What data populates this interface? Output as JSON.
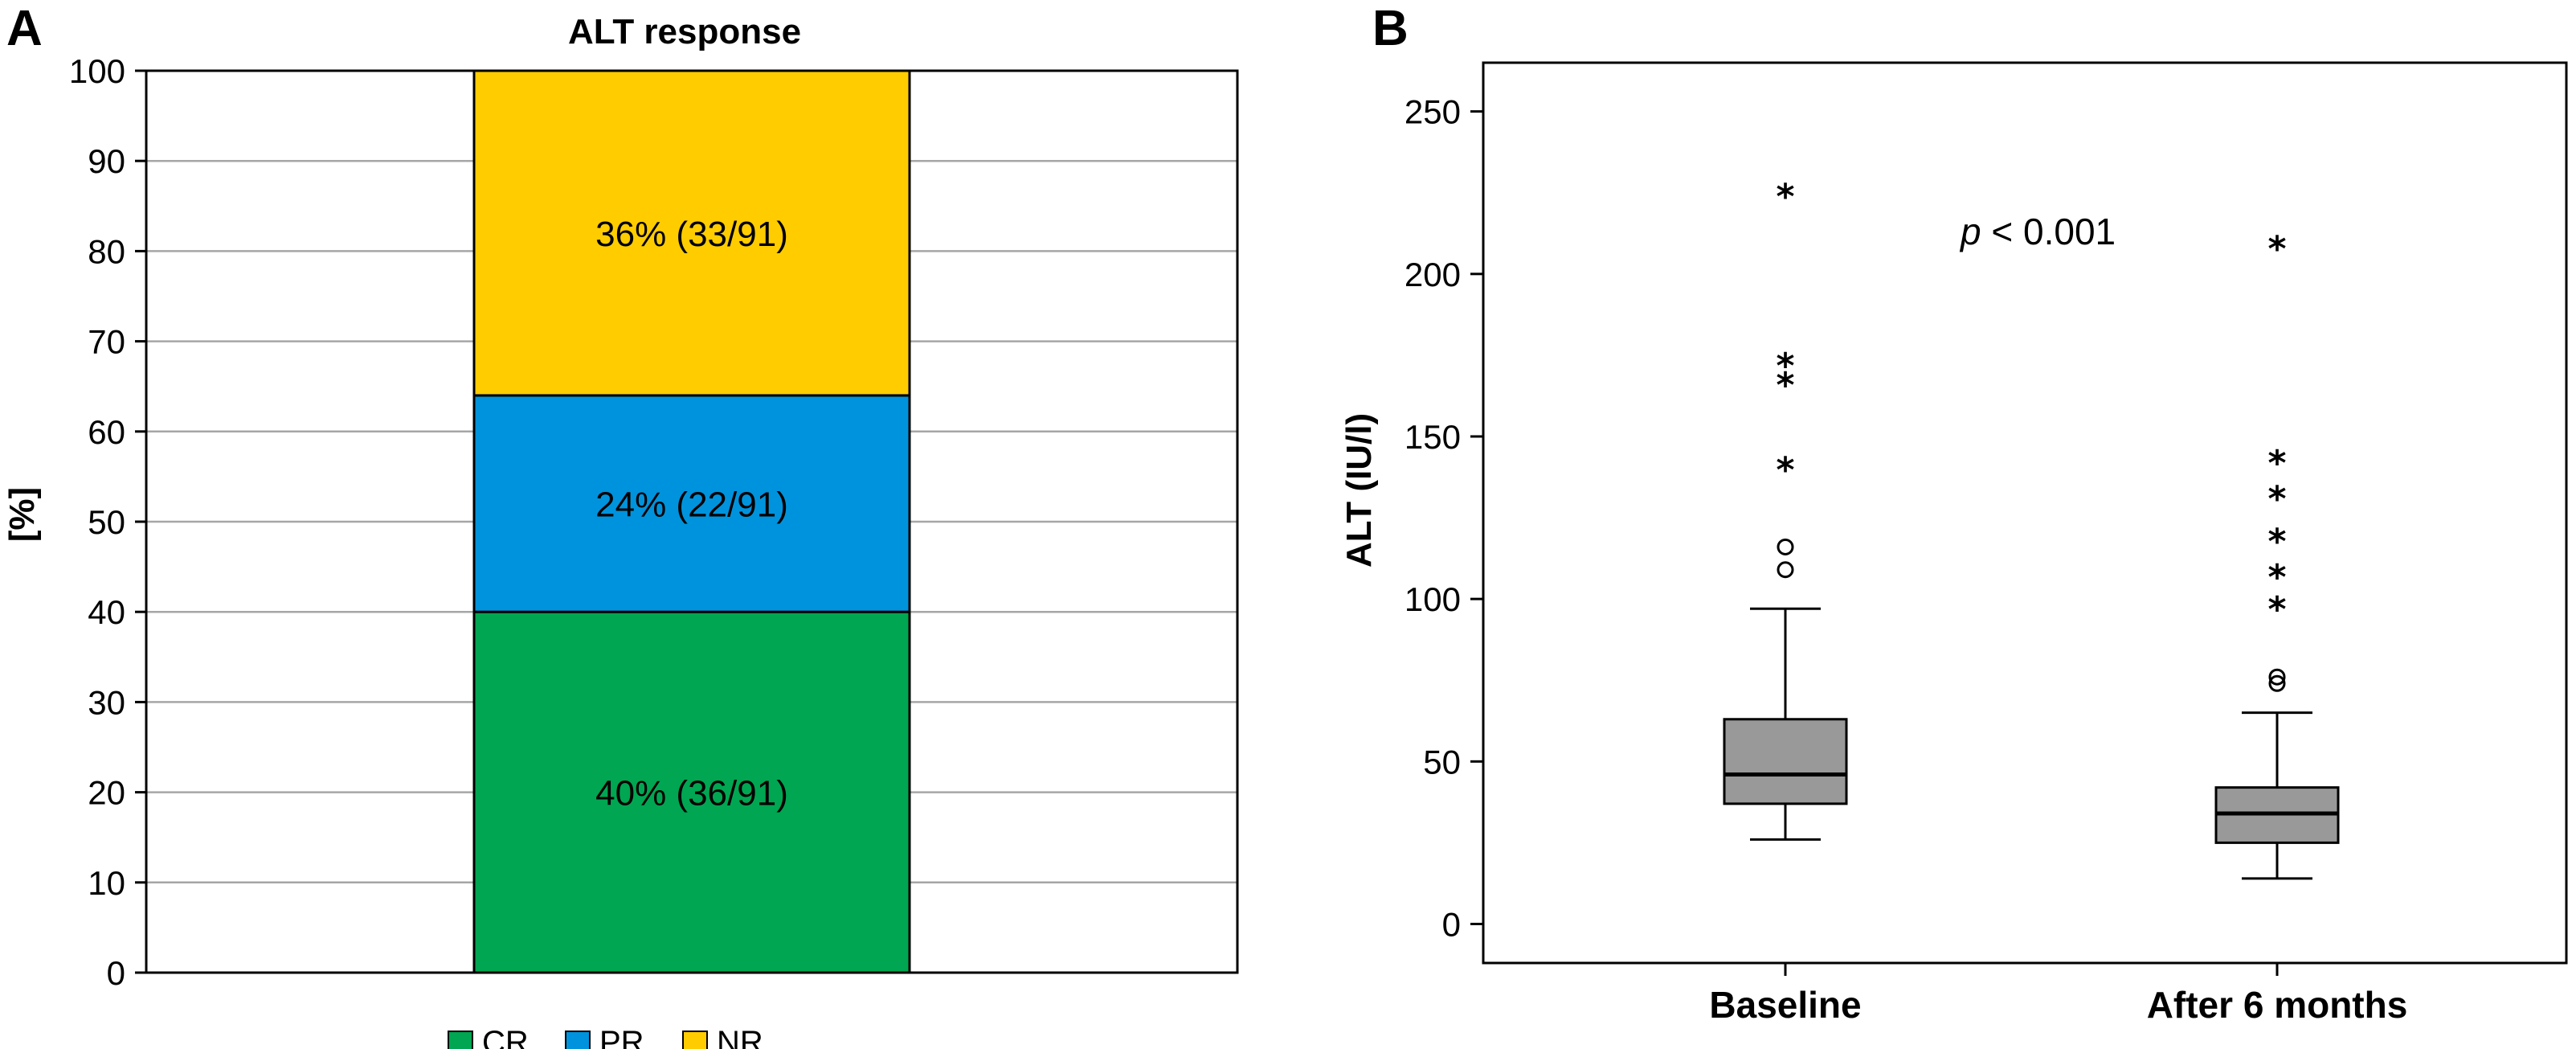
{
  "chart_data": [
    {
      "panel": "A",
      "type": "bar",
      "stacked": true,
      "title": "ALT response",
      "ylabel": "[%]",
      "ylim": [
        0,
        100
      ],
      "yticks": [
        0,
        10,
        20,
        30,
        40,
        50,
        60,
        70,
        80,
        90,
        100
      ],
      "grid": true,
      "segments": [
        {
          "name": "CR",
          "value": 40,
          "label": "40% (36/91)",
          "color": "#00a651"
        },
        {
          "name": "PR",
          "value": 24,
          "label": "24% (22/91)",
          "color": "#0093dd"
        },
        {
          "name": "NR",
          "value": 36,
          "label": "36% (33/91)",
          "color": "#ffcc00"
        }
      ],
      "legend": {
        "placement": "bottom",
        "entries": [
          "CR",
          "PR",
          "NR"
        ]
      }
    },
    {
      "panel": "B",
      "type": "box",
      "ylabel": "ALT (IU/l)",
      "ylim": [
        -12,
        265
      ],
      "yticks": [
        0,
        50,
        100,
        150,
        200,
        250
      ],
      "annotation": {
        "italic": "p",
        "rest": " < 0.001"
      },
      "box_color": "#999999",
      "categories": [
        "Baseline",
        "After 6 months"
      ],
      "boxes": [
        {
          "category": "Baseline",
          "whisker_low": 26,
          "q1": 37,
          "median": 46,
          "q3": 63,
          "whisker_high": 97,
          "outliers": [
            109,
            116
          ],
          "extremes": [
            142,
            168,
            174,
            226
          ]
        },
        {
          "category": "After 6 months",
          "whisker_low": 14,
          "q1": 25,
          "median": 34,
          "q3": 42,
          "whisker_high": 65,
          "outliers": [
            74,
            76
          ],
          "extremes": [
            99,
            109,
            120,
            133,
            144,
            210
          ]
        }
      ],
      "outlier_marker": "○",
      "extreme_marker": "*"
    }
  ]
}
